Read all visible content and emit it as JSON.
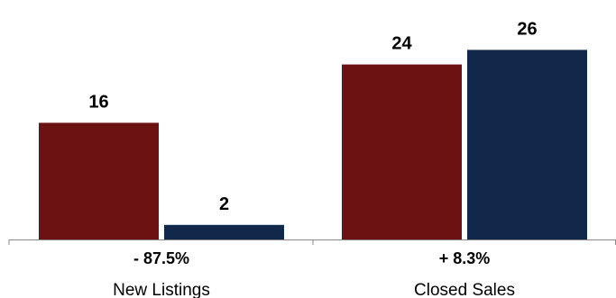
{
  "chart_data": {
    "type": "bar",
    "categories": [
      "New Listings",
      "Closed Sales"
    ],
    "change_labels": [
      "- 87.5%",
      "+ 8.3%"
    ],
    "series": [
      {
        "values": [
          16,
          24
        ],
        "color": "#6d1213"
      },
      {
        "values": [
          2,
          26
        ],
        "color": "#11284a"
      }
    ],
    "ylim": [
      0,
      28
    ],
    "grid": false,
    "legend": "none",
    "axis_color": "#888888"
  }
}
